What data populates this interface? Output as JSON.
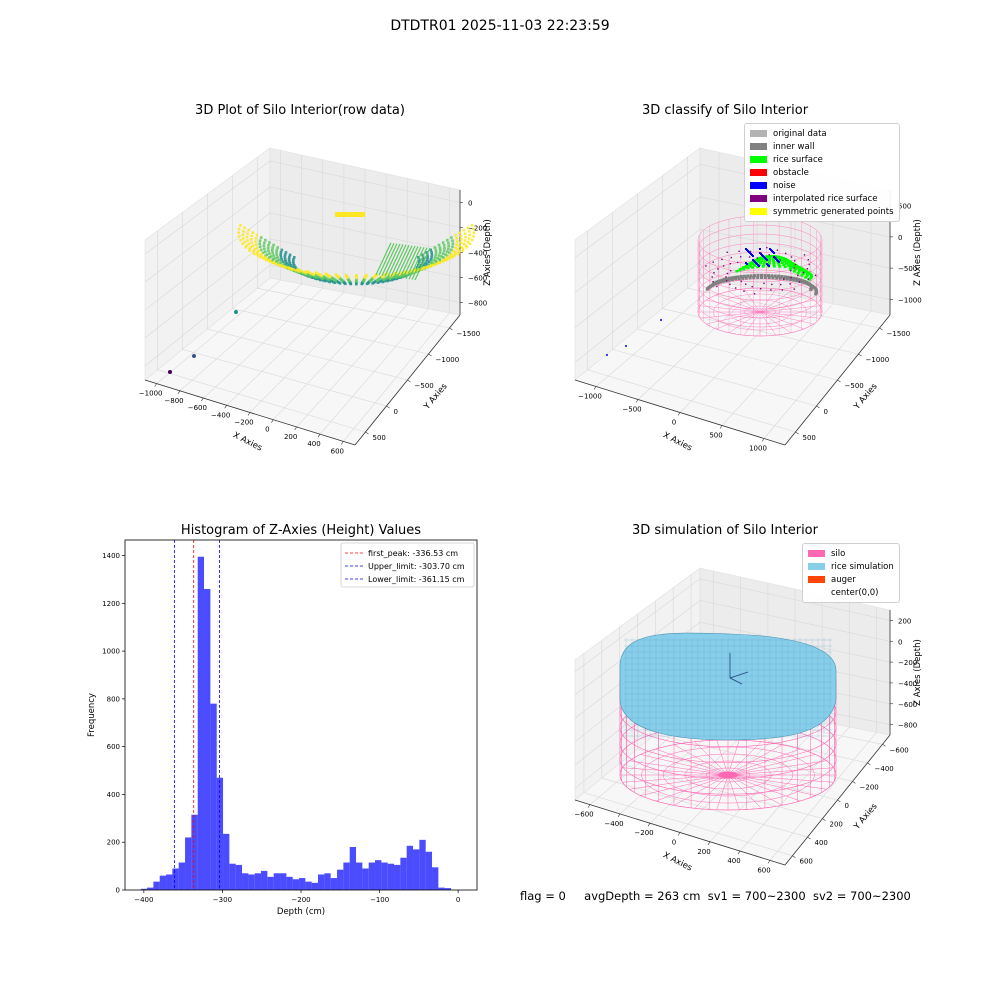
{
  "figure": {
    "title": "DTDTR01 2025-11-03 22:23:59",
    "status": {
      "flag_text": "flag = 0",
      "avg_depth_text": "avgDepth = 263 cm",
      "sv1_text": "sv1 = 700~2300",
      "sv2_text": "sv2 = 700~2300"
    }
  },
  "chart_data": [
    {
      "type": "scatter",
      "title": "3D Plot of Silo Interior(row data)",
      "xlabel": "X Axies",
      "ylabel": "Y Axies",
      "zlabel": "Z Axies (Depth)",
      "xticks": [
        "−1000",
        "−800",
        "−600",
        "−400",
        "−200",
        "0",
        "200",
        "400",
        "600"
      ],
      "yticks": [
        "500",
        "0",
        "−500",
        "−1000",
        "−1500"
      ],
      "zticks": [
        "0",
        "−200",
        "−400",
        "−600",
        "−800"
      ],
      "colormap": [
        "#440154",
        "#21908d",
        "#5ec962",
        "#fde725"
      ],
      "outlier_points": [
        {
          "x": -900,
          "y": -1400,
          "z": -850
        },
        {
          "x": -800,
          "y": -1200,
          "z": -800
        },
        {
          "x": -500,
          "y": -800,
          "z": -750
        }
      ]
    },
    {
      "type": "scatter",
      "title": "3D classify of Silo Interior",
      "xlabel": "X Axies",
      "ylabel": "Y Axies",
      "zlabel": "Z Axies (Depth)",
      "xticks": [
        "−1000",
        "−500",
        "0",
        "500",
        "1000"
      ],
      "yticks": [
        "500",
        "0",
        "−500",
        "−1000",
        "−1500"
      ],
      "zticks": [
        "500",
        "0",
        "−500",
        "−1000"
      ],
      "legend": [
        {
          "label": "original data",
          "color": "#b3b3b3"
        },
        {
          "label": "inner wall",
          "color": "#808080"
        },
        {
          "label": "rice surface",
          "color": "#00ff00"
        },
        {
          "label": "obstacle",
          "color": "#ff0000"
        },
        {
          "label": "noise",
          "color": "#0000ff"
        },
        {
          "label": "interpolated rice surface",
          "color": "#800080"
        },
        {
          "label": "symmetric generated points",
          "color": "#ffff00"
        }
      ],
      "silo_color": "#ff69b4"
    },
    {
      "type": "bar",
      "title": "Histogram of Z-Axies (Height) Values",
      "xlabel": "Depth (cm)",
      "ylabel": "Frequency",
      "xlim": [
        -424,
        24
      ],
      "ylim": [
        0,
        1465
      ],
      "xticks": [
        -400,
        -300,
        -200,
        -100,
        0
      ],
      "yticks": [
        0,
        200,
        400,
        600,
        800,
        1000,
        1200,
        1400
      ],
      "bin_width": 8.06,
      "bin_start": -404,
      "color": "#0000ff",
      "values": [
        5,
        10,
        35,
        60,
        65,
        90,
        115,
        220,
        315,
        1395,
        1260,
        780,
        470,
        235,
        110,
        105,
        70,
        65,
        70,
        80,
        55,
        70,
        70,
        55,
        45,
        50,
        35,
        30,
        65,
        70,
        50,
        85,
        115,
        180,
        115,
        90,
        115,
        125,
        115,
        110,
        105,
        135,
        185,
        170,
        210,
        160,
        95,
        10,
        8
      ],
      "lines": [
        {
          "label": "first_peak: -336.53 cm",
          "value": -336.53,
          "color": "#ff0000"
        },
        {
          "label": "Upper_limit: -303.70 cm",
          "value": -303.7,
          "color": "#0000ff"
        },
        {
          "label": "Lower_limit: -361.15 cm",
          "value": -361.15,
          "color": "#0000ff"
        }
      ]
    },
    {
      "type": "scatter",
      "title": "3D simulation of Silo Interior",
      "xlabel": "X Axies",
      "ylabel": "Y Axies",
      "zlabel": "Z Axies (Depth)",
      "xticks": [
        "−600",
        "−400",
        "−200",
        "0",
        "200",
        "400",
        "600"
      ],
      "yticks": [
        "600",
        "400",
        "200",
        "0",
        "−200",
        "−400",
        "−600"
      ],
      "zticks": [
        "200",
        "0",
        "−200",
        "−400",
        "−600",
        "−800"
      ],
      "legend": [
        {
          "label": "silo",
          "color": "#ff69b4"
        },
        {
          "label": "rice simulation",
          "color": "#87ceeb"
        },
        {
          "label": "auger",
          "color": "#ff4500"
        },
        {
          "label": "center(0,0)",
          "color": ""
        }
      ]
    }
  ]
}
